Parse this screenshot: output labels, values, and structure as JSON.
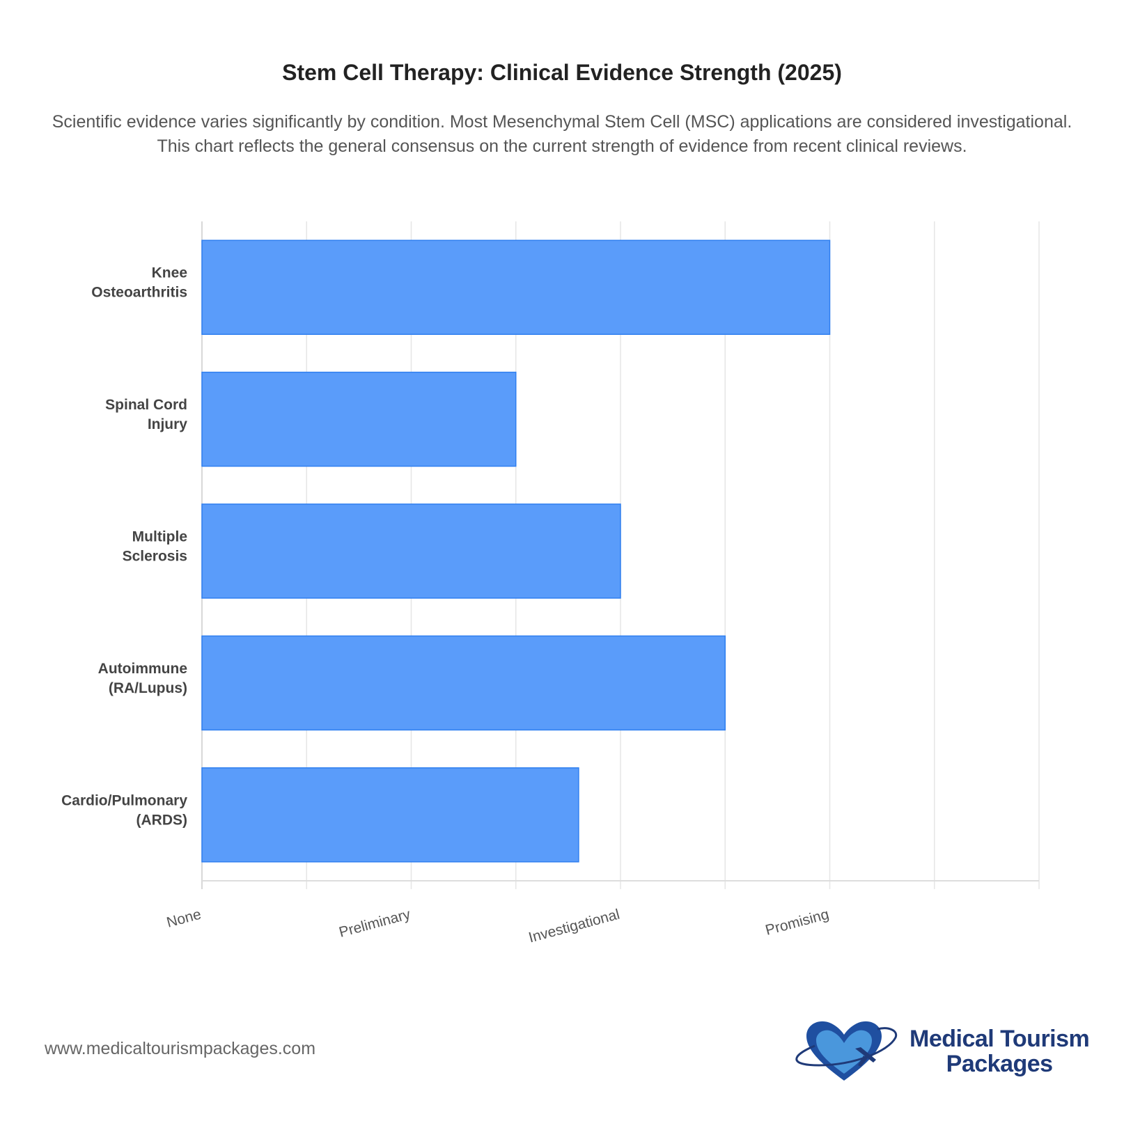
{
  "chart_data": {
    "type": "bar",
    "orientation": "horizontal",
    "title": "Stem Cell Therapy: Clinical Evidence Strength (2025)",
    "subtitle": "Scientific evidence varies significantly by condition. Most Mesenchymal Stem Cell (MSC) applications are considered investigational. This chart reflects the general consensus on the current strength of evidence from recent clinical reviews.",
    "categories": [
      "Knee Osteoarthritis",
      "Spinal Cord Injury",
      "Multiple Sclerosis",
      "Autoimmune (RA/Lupus)",
      "Cardio/Pulmonary (ARDS)"
    ],
    "category_lines": [
      [
        "Knee",
        "Osteoarthritis"
      ],
      [
        "Spinal Cord",
        "Injury"
      ],
      [
        "Multiple",
        "Sclerosis"
      ],
      [
        "Autoimmune",
        "(RA/Lupus)"
      ],
      [
        "Cardio/Pulmonary",
        "(ARDS)"
      ]
    ],
    "values": [
      3,
      1.5,
      2,
      2.5,
      1.8
    ],
    "xlim": [
      0,
      4
    ],
    "grid_step": 0.5,
    "x_ticks": [
      {
        "value": 0,
        "label": "None"
      },
      {
        "value": 1,
        "label": "Preliminary"
      },
      {
        "value": 2,
        "label": "Investigational"
      },
      {
        "value": 3,
        "label": "Promising"
      }
    ],
    "xlabel": "",
    "ylabel": "",
    "grid": true,
    "legend": "none",
    "bar_color": "#5599fa",
    "bar_border_color": "#2f7ff0"
  },
  "footer": {
    "url": "www.medicaltourismpackages.com",
    "logo_text_line1": "Medical Tourism",
    "logo_text_line2": "Packages"
  }
}
